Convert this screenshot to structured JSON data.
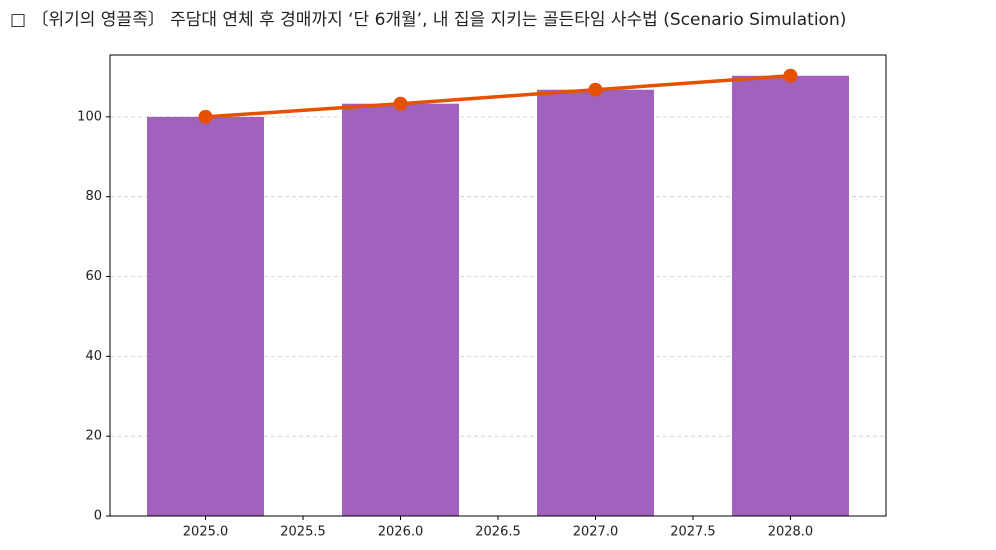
{
  "chart_data": {
    "type": "bar",
    "title": "□ 〔위기의 영끌족〕 주담대 연체 후 경매까지 ‘단 6개월’, 내 집을 지키는 골든타임 사수법 (Scenario Simulation)",
    "x": [
      2025,
      2026,
      2027,
      2028
    ],
    "series": [
      {
        "type": "bar",
        "color": "#a162bd",
        "values": [
          100,
          103.3,
          106.8,
          110.3
        ]
      },
      {
        "type": "line",
        "color": "#e65100",
        "values": [
          100,
          103.3,
          106.8,
          110.3
        ]
      }
    ],
    "bar_width": 0.6,
    "xlim": [
      2024.51,
      2028.49
    ],
    "xticks": [
      {
        "value": 2025,
        "label": "2025.0"
      },
      {
        "value": 2025.5,
        "label": "2025.5"
      },
      {
        "value": 2026,
        "label": "2026.0"
      },
      {
        "value": 2026.5,
        "label": "2026.5"
      },
      {
        "value": 2027,
        "label": "2027.0"
      },
      {
        "value": 2027.5,
        "label": "2027.5"
      },
      {
        "value": 2028,
        "label": "2028.0"
      }
    ],
    "ylim": [
      0,
      115.5
    ],
    "yticks": [
      0,
      20,
      40,
      60,
      80,
      100
    ],
    "grid": true
  }
}
